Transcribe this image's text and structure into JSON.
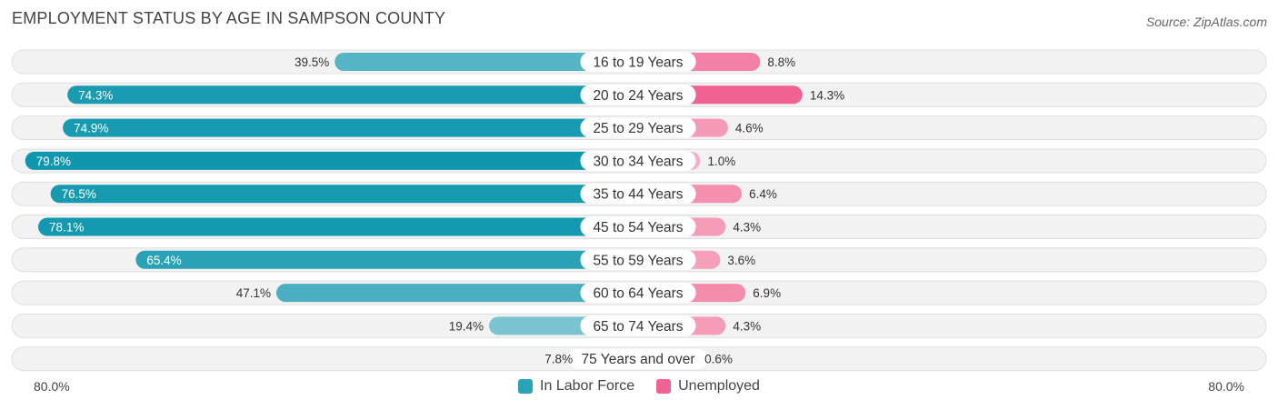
{
  "title": "EMPLOYMENT STATUS BY AGE IN SAMPSON COUNTY",
  "source": "Source: ZipAtlas.com",
  "axis": {
    "left_label": "80.0%",
    "right_label": "80.0%"
  },
  "legend": {
    "labor": {
      "label": "In Labor Force",
      "color": "#2ba3b7"
    },
    "unemployed": {
      "label": "Unemployed",
      "color": "#f06292"
    }
  },
  "chart_data": {
    "type": "bar",
    "title": "EMPLOYMENT STATUS BY AGE IN SAMPSON COUNTY",
    "orientation": "diverging-horizontal",
    "xlim": [
      -80,
      80
    ],
    "categories": [
      "16 to 19 Years",
      "20 to 24 Years",
      "25 to 29 Years",
      "30 to 34 Years",
      "35 to 44 Years",
      "45 to 54 Years",
      "55 to 59 Years",
      "60 to 64 Years",
      "65 to 74 Years",
      "75 Years and over"
    ],
    "series": [
      {
        "name": "In Labor Force",
        "values": [
          39.5,
          74.3,
          74.9,
          79.8,
          76.5,
          78.1,
          65.4,
          47.1,
          19.4,
          7.8
        ],
        "labels": [
          "39.5%",
          "74.3%",
          "74.9%",
          "79.8%",
          "76.5%",
          "78.1%",
          "65.4%",
          "47.1%",
          "19.4%",
          "7.8%"
        ]
      },
      {
        "name": "Unemployed",
        "values": [
          8.8,
          14.3,
          4.6,
          1.0,
          6.4,
          4.3,
          3.6,
          6.9,
          4.3,
          0.6
        ],
        "labels": [
          "8.8%",
          "14.3%",
          "4.6%",
          "1.0%",
          "6.4%",
          "4.3%",
          "3.6%",
          "6.9%",
          "4.3%",
          "0.6%"
        ]
      }
    ]
  }
}
